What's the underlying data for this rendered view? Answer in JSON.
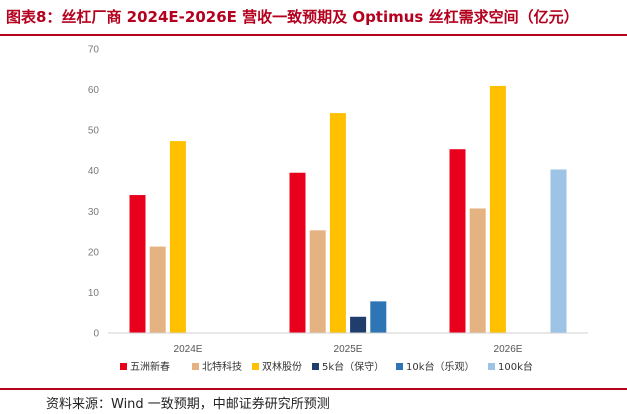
{
  "title": "图表8：丝杠厂商 2024E-2026E 营收一致预期及 Optimus 丝杠需求空间（亿元）",
  "source": "资料来源：Wind 一致预期，中邮证券研究所预测",
  "chart_data": {
    "type": "bar",
    "categories": [
      "2024E",
      "2025E",
      "2026E"
    ],
    "series": [
      {
        "name": "五洲新春",
        "color": "#e8001c",
        "values": [
          34,
          39.5,
          45.3
        ]
      },
      {
        "name": "北特科技",
        "color": "#e5b281",
        "values": [
          21.3,
          25.3,
          30.7
        ]
      },
      {
        "name": "双林股份",
        "color": "#ffc000",
        "values": [
          47.3,
          54.2,
          60.9
        ]
      },
      {
        "name": "5k台（保守）",
        "color": "#1f3e6b",
        "values": [
          null,
          4,
          null
        ]
      },
      {
        "name": "10k台（乐观）",
        "color": "#2e75b6",
        "values": [
          null,
          7.8,
          null
        ]
      },
      {
        "name": "100k台",
        "color": "#9dc3e6",
        "values": [
          null,
          null,
          40.3
        ]
      }
    ],
    "yticks": [
      0,
      10,
      20,
      30,
      40,
      50,
      60,
      70
    ],
    "ylim": [
      0,
      70
    ],
    "grid": false,
    "legend": "bottom"
  }
}
